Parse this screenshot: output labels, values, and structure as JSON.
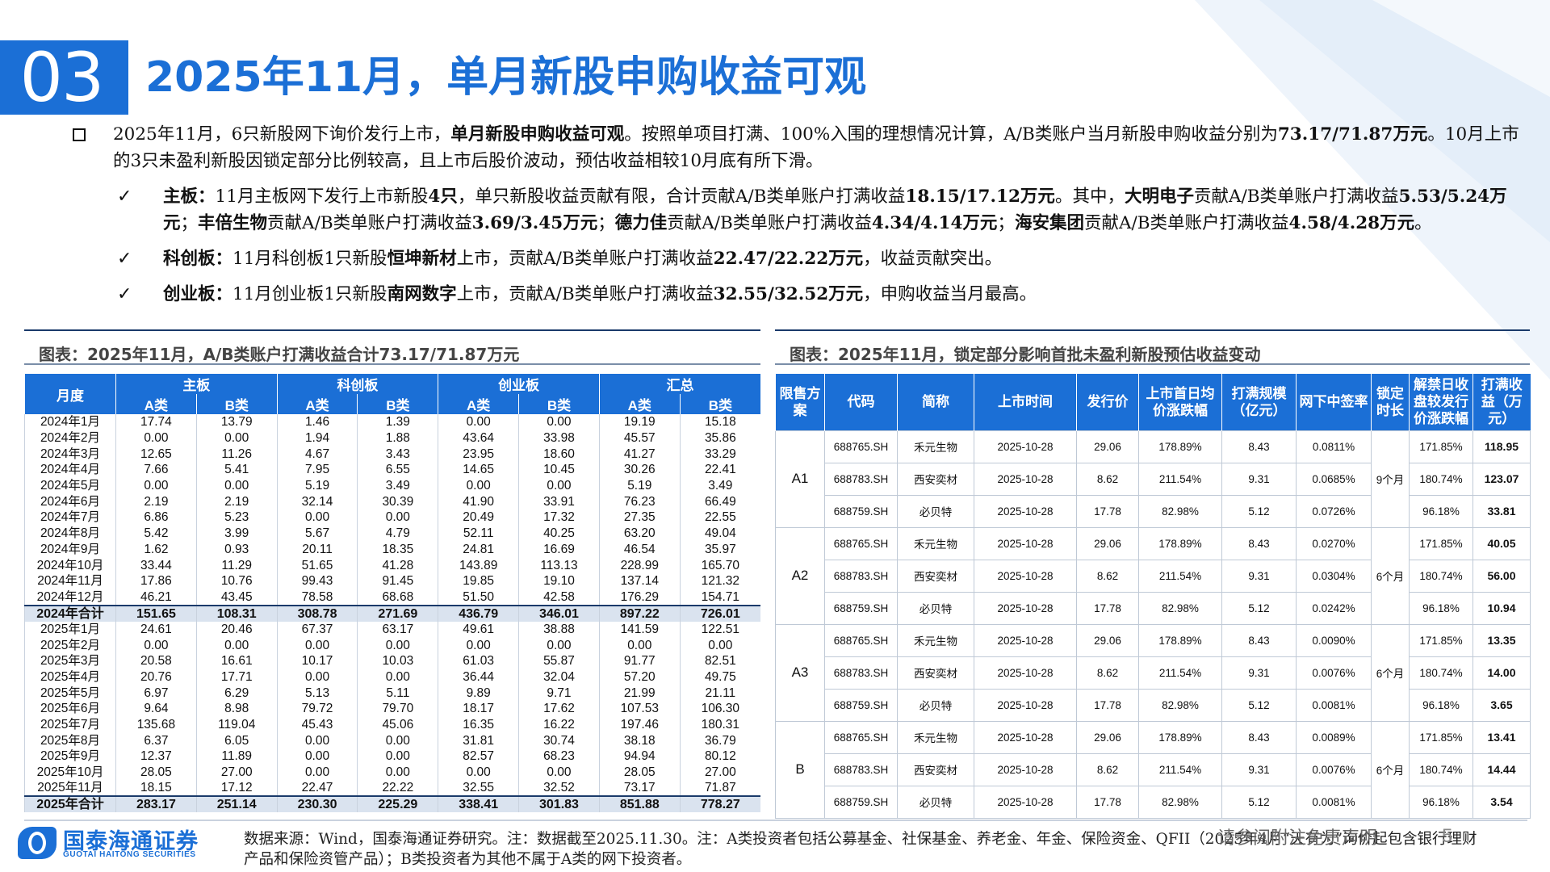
{
  "header": {
    "section_number": "03",
    "title": "2025年11月，单月新股申购收益可观"
  },
  "intro": {
    "segments": [
      {
        "t": "2025年11月，6只新股网下询价发行上市，",
        "b": false
      },
      {
        "t": "单月新股申购收益可观",
        "b": true
      },
      {
        "t": "。按照单项目打满、100%入围的理想情况计算，A/B类账户当月新股申购收益分别为",
        "b": false
      },
      {
        "t": "73.17/71.87万元",
        "b": true
      },
      {
        "t": "。10月上市的3只未盈利新股因锁定部分比例较高，且上市后股价波动，预估收益相较10月底有所下滑。",
        "b": false
      }
    ],
    "points": [
      {
        "segments": [
          {
            "t": "主板：",
            "b": true
          },
          {
            "t": "11月主板网下发行上市新股",
            "b": false
          },
          {
            "t": "4只",
            "b": true
          },
          {
            "t": "，单只新股收益贡献有限，合计贡献A/B类单账户打满收益",
            "b": false
          },
          {
            "t": "18.15/17.12万元",
            "b": true
          },
          {
            "t": "。其中，",
            "b": false
          },
          {
            "t": "大明电子",
            "b": true
          },
          {
            "t": "贡献A/B类单账户打满收益",
            "b": false
          },
          {
            "t": "5.53/5.24万元",
            "b": true
          },
          {
            "t": "；",
            "b": false
          },
          {
            "t": "丰倍生物",
            "b": true
          },
          {
            "t": "贡献A/B类单账户打满收益",
            "b": false
          },
          {
            "t": "3.69/3.45万元",
            "b": true
          },
          {
            "t": "；",
            "b": false
          },
          {
            "t": "德力佳",
            "b": true
          },
          {
            "t": "贡献A/B类单账户打满收益",
            "b": false
          },
          {
            "t": "4.34/4.14万元",
            "b": true
          },
          {
            "t": "；",
            "b": false
          },
          {
            "t": "海安集团",
            "b": true
          },
          {
            "t": "贡献A/B类单账户打满收益",
            "b": false
          },
          {
            "t": "4.58/4.28万元",
            "b": true
          },
          {
            "t": "。",
            "b": false
          }
        ]
      },
      {
        "segments": [
          {
            "t": "科创板：",
            "b": true
          },
          {
            "t": "11月科创板1只新股",
            "b": false
          },
          {
            "t": "恒坤新材",
            "b": true
          },
          {
            "t": "上市，贡献A/B类单账户打满收益",
            "b": false
          },
          {
            "t": "22.47/22.22万元",
            "b": true
          },
          {
            "t": "，收益贡献突出。",
            "b": false
          }
        ]
      },
      {
        "segments": [
          {
            "t": "创业板：",
            "b": true
          },
          {
            "t": "11月创业板1只新股",
            "b": false
          },
          {
            "t": "南网数字",
            "b": true
          },
          {
            "t": "上市，贡献A/B类单账户打满收益",
            "b": false
          },
          {
            "t": "32.55/32.52万元",
            "b": true
          },
          {
            "t": "，申购收益当月最高。",
            "b": false
          }
        ]
      }
    ]
  },
  "left_table": {
    "title": "图表：2025年11月，A/B类账户打满收益合计73.17/71.87万元",
    "month_header": "月度",
    "groups": [
      "主板",
      "科创板",
      "创业板",
      "汇总"
    ],
    "sub_headers": [
      "A类",
      "B类"
    ],
    "rows": [
      [
        "2024年1月",
        "17.74",
        "13.79",
        "1.46",
        "1.39",
        "0.00",
        "0.00",
        "19.19",
        "15.18"
      ],
      [
        "2024年2月",
        "0.00",
        "0.00",
        "1.94",
        "1.88",
        "43.64",
        "33.98",
        "45.57",
        "35.86"
      ],
      [
        "2024年3月",
        "12.65",
        "11.26",
        "4.67",
        "3.43",
        "23.95",
        "18.60",
        "41.27",
        "33.29"
      ],
      [
        "2024年4月",
        "7.66",
        "5.41",
        "7.95",
        "6.55",
        "14.65",
        "10.45",
        "30.26",
        "22.41"
      ],
      [
        "2024年5月",
        "0.00",
        "0.00",
        "5.19",
        "3.49",
        "0.00",
        "0.00",
        "5.19",
        "3.49"
      ],
      [
        "2024年6月",
        "2.19",
        "2.19",
        "32.14",
        "30.39",
        "41.90",
        "33.91",
        "76.23",
        "66.49"
      ],
      [
        "2024年7月",
        "6.86",
        "5.23",
        "0.00",
        "0.00",
        "20.49",
        "17.32",
        "27.35",
        "22.55"
      ],
      [
        "2024年8月",
        "5.42",
        "3.99",
        "5.67",
        "4.79",
        "52.11",
        "40.25",
        "63.20",
        "49.04"
      ],
      [
        "2024年9月",
        "1.62",
        "0.93",
        "20.11",
        "18.35",
        "24.81",
        "16.69",
        "46.54",
        "35.97"
      ],
      [
        "2024年10月",
        "33.44",
        "11.29",
        "51.65",
        "41.28",
        "143.89",
        "113.13",
        "228.99",
        "165.70"
      ],
      [
        "2024年11月",
        "17.86",
        "10.76",
        "99.43",
        "91.45",
        "19.85",
        "19.10",
        "137.14",
        "121.32"
      ],
      [
        "2024年12月",
        "46.21",
        "43.45",
        "78.58",
        "68.68",
        "51.50",
        "42.58",
        "176.29",
        "154.71"
      ],
      [
        "2024年合计",
        "151.65",
        "108.31",
        "308.78",
        "271.69",
        "436.79",
        "346.01",
        "897.22",
        "726.01"
      ],
      [
        "2025年1月",
        "24.61",
        "20.46",
        "67.37",
        "63.17",
        "49.61",
        "38.88",
        "141.59",
        "122.51"
      ],
      [
        "2025年2月",
        "0.00",
        "0.00",
        "0.00",
        "0.00",
        "0.00",
        "0.00",
        "0.00",
        "0.00"
      ],
      [
        "2025年3月",
        "20.58",
        "16.61",
        "10.17",
        "10.03",
        "61.03",
        "55.87",
        "91.77",
        "82.51"
      ],
      [
        "2025年4月",
        "20.76",
        "17.71",
        "0.00",
        "0.00",
        "36.44",
        "32.04",
        "57.20",
        "49.75"
      ],
      [
        "2025年5月",
        "6.97",
        "6.29",
        "5.13",
        "5.11",
        "9.89",
        "9.71",
        "21.99",
        "21.11"
      ],
      [
        "2025年6月",
        "9.64",
        "8.98",
        "79.72",
        "79.70",
        "18.17",
        "17.62",
        "107.53",
        "106.30"
      ],
      [
        "2025年7月",
        "135.68",
        "119.04",
        "45.43",
        "45.06",
        "16.35",
        "16.22",
        "197.46",
        "180.31"
      ],
      [
        "2025年8月",
        "6.37",
        "6.05",
        "0.00",
        "0.00",
        "31.81",
        "30.74",
        "38.18",
        "36.79"
      ],
      [
        "2025年9月",
        "12.37",
        "11.89",
        "0.00",
        "0.00",
        "82.57",
        "68.23",
        "94.94",
        "80.12"
      ],
      [
        "2025年10月",
        "28.05",
        "27.00",
        "0.00",
        "0.00",
        "0.00",
        "0.00",
        "28.05",
        "27.00"
      ],
      [
        "2025年11月",
        "18.15",
        "17.12",
        "22.47",
        "22.22",
        "32.55",
        "32.52",
        "73.17",
        "71.87"
      ],
      [
        "2025年合计",
        "283.17",
        "251.14",
        "230.30",
        "225.29",
        "338.41",
        "301.83",
        "851.88",
        "778.27"
      ]
    ]
  },
  "right_table": {
    "title": "图表：2025年11月，锁定部分影响首批未盈利新股预估收益变动",
    "headers": [
      "限售方案",
      "代码",
      "简称",
      "上市时间",
      "发行价",
      "上市首日均价涨跌幅",
      "打满规模（亿元）",
      "网下中签率",
      "锁定时长",
      "解禁日收盘较发行价涨跌幅",
      "打满收益（万元）"
    ],
    "groups": [
      {
        "scheme": "A1",
        "lock": "9个月",
        "rows": [
          [
            "688765.SH",
            "禾元生物",
            "2025-10-28",
            "29.06",
            "178.89%",
            "8.43",
            "0.0811%",
            "171.85%",
            "118.95"
          ],
          [
            "688783.SH",
            "西安奕材",
            "2025-10-28",
            "8.62",
            "211.54%",
            "9.31",
            "0.0685%",
            "180.74%",
            "123.07"
          ],
          [
            "688759.SH",
            "必贝特",
            "2025-10-28",
            "17.78",
            "82.98%",
            "5.12",
            "0.0726%",
            "96.18%",
            "33.81"
          ]
        ]
      },
      {
        "scheme": "A2",
        "lock": "6个月",
        "rows": [
          [
            "688765.SH",
            "禾元生物",
            "2025-10-28",
            "29.06",
            "178.89%",
            "8.43",
            "0.0270%",
            "171.85%",
            "40.05"
          ],
          [
            "688783.SH",
            "西安奕材",
            "2025-10-28",
            "8.62",
            "211.54%",
            "9.31",
            "0.0304%",
            "180.74%",
            "56.00"
          ],
          [
            "688759.SH",
            "必贝特",
            "2025-10-28",
            "17.78",
            "82.98%",
            "5.12",
            "0.0242%",
            "96.18%",
            "10.94"
          ]
        ]
      },
      {
        "scheme": "A3",
        "lock": "6个月",
        "rows": [
          [
            "688765.SH",
            "禾元生物",
            "2025-10-28",
            "29.06",
            "178.89%",
            "8.43",
            "0.0090%",
            "171.85%",
            "13.35"
          ],
          [
            "688783.SH",
            "西安奕材",
            "2025-10-28",
            "8.62",
            "211.54%",
            "9.31",
            "0.0076%",
            "180.74%",
            "14.00"
          ],
          [
            "688759.SH",
            "必贝特",
            "2025-10-28",
            "17.78",
            "82.98%",
            "5.12",
            "0.0081%",
            "96.18%",
            "3.65"
          ]
        ]
      },
      {
        "scheme": "B",
        "lock": "6个月",
        "rows": [
          [
            "688765.SH",
            "禾元生物",
            "2025-10-28",
            "29.06",
            "178.89%",
            "8.43",
            "0.0089%",
            "171.85%",
            "13.41"
          ],
          [
            "688783.SH",
            "西安奕材",
            "2025-10-28",
            "8.62",
            "211.54%",
            "9.31",
            "0.0076%",
            "180.74%",
            "14.44"
          ],
          [
            "688759.SH",
            "必贝特",
            "2025-10-28",
            "17.78",
            "82.98%",
            "5.12",
            "0.0081%",
            "96.18%",
            "3.54"
          ]
        ]
      }
    ]
  },
  "footer": {
    "logo_cn": "国泰海通证券",
    "logo_en": "GUOTAI HAITONG SECURITIES",
    "source": "数据来源：Wind，国泰海通证券研究。注：数据截至2025.11.30。注：A类投资者包括公募基金、社保基金、养老金、年金、保险资金、QFII（2025年4月“天有为”询价起包含银行理财产品和保险资管产品）；B类投资者为其他不属于A类的网下投资者。",
    "disclaimer": "请参阅附注免责声明",
    "page": "5"
  },
  "colors": {
    "brand": "#1b6fd6",
    "dark_rule": "#1a3a6a",
    "sum_row": "#dae3ef",
    "decor": "#eef4fb"
  }
}
